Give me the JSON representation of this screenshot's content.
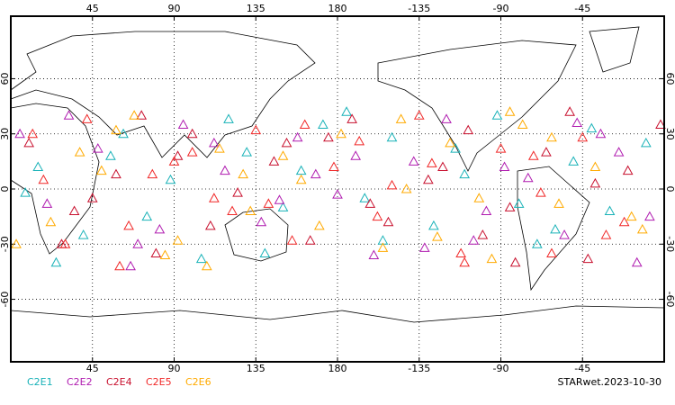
{
  "chart_data": {
    "type": "scatter",
    "title": "STARwet.2023-10-30",
    "xlim": [
      0,
      360
    ],
    "ylim": [
      -94,
      94
    ],
    "xticks": [
      45,
      90,
      135,
      180,
      {
        "value": 225,
        "label": "-135"
      },
      {
        "value": 270,
        "label": "-90"
      },
      {
        "value": 315,
        "label": "-45"
      }
    ],
    "yticks": [
      -60,
      -30,
      0,
      30,
      60
    ],
    "grid": true,
    "series": [
      {
        "name": "C2E1",
        "color": "#19b2b8",
        "x": [
          15,
          40,
          62,
          88,
          105,
          130,
          150,
          172,
          195,
          210,
          233,
          250,
          268,
          290,
          310,
          330,
          350,
          25,
          75,
          120,
          160,
          205,
          245,
          280,
          320,
          8,
          55,
          140,
          185,
          300
        ],
        "y": [
          12,
          -25,
          30,
          5,
          -38,
          20,
          -10,
          35,
          -5,
          28,
          -20,
          8,
          40,
          -30,
          15,
          -12,
          25,
          -40,
          -15,
          38,
          10,
          -28,
          22,
          -8,
          33,
          -2,
          18,
          -35,
          42,
          -22
        ]
      },
      {
        "name": "C2E2",
        "color": "#b01cb0",
        "x": [
          20,
          48,
          70,
          95,
          118,
          138,
          158,
          180,
          200,
          222,
          240,
          262,
          285,
          305,
          325,
          345,
          32,
          82,
          112,
          148,
          190,
          228,
          272,
          312,
          352,
          5,
          66,
          168,
          255,
          335
        ],
        "y": [
          -8,
          22,
          -30,
          35,
          10,
          -18,
          28,
          -3,
          -36,
          15,
          38,
          -12,
          6,
          -25,
          30,
          -40,
          40,
          -22,
          25,
          -6,
          18,
          -32,
          12,
          36,
          -15,
          30,
          -42,
          8,
          -28,
          20
        ]
      },
      {
        "name": "C2E4",
        "color": "#c8102e",
        "x": [
          10,
          35,
          58,
          80,
          100,
          125,
          145,
          165,
          188,
          208,
          230,
          252,
          275,
          295,
          318,
          340,
          28,
          72,
          110,
          152,
          198,
          238,
          278,
          322,
          358,
          45,
          92,
          175,
          260,
          308
        ],
        "y": [
          25,
          -12,
          8,
          -35,
          30,
          -2,
          15,
          -28,
          38,
          -18,
          5,
          32,
          -10,
          20,
          -38,
          10,
          -30,
          40,
          -20,
          25,
          -8,
          12,
          -40,
          3,
          35,
          -5,
          18,
          28,
          -25,
          42
        ]
      },
      {
        "name": "C2E5",
        "color": "#f02828",
        "x": [
          18,
          42,
          65,
          90,
          112,
          135,
          155,
          178,
          202,
          225,
          248,
          270,
          292,
          315,
          338,
          30,
          78,
          122,
          162,
          210,
          250,
          288,
          328,
          12,
          60,
          100,
          142,
          192,
          232,
          298
        ],
        "y": [
          5,
          38,
          -20,
          15,
          -5,
          32,
          -28,
          12,
          -15,
          40,
          -35,
          22,
          -2,
          28,
          -18,
          -30,
          8,
          -12,
          35,
          2,
          -40,
          18,
          -25,
          30,
          -42,
          20,
          -8,
          26,
          14,
          -35
        ]
      },
      {
        "name": "C2E6",
        "color": "#ffaa00",
        "x": [
          22,
          50,
          68,
          92,
          115,
          132,
          160,
          182,
          205,
          218,
          242,
          265,
          282,
          302,
          322,
          348,
          38,
          85,
          128,
          170,
          215,
          258,
          298,
          342,
          3,
          58,
          108,
          150,
          235,
          275
        ],
        "y": [
          -18,
          10,
          40,
          -28,
          22,
          -12,
          5,
          30,
          -32,
          0,
          25,
          -38,
          35,
          -8,
          12,
          -22,
          20,
          -36,
          8,
          -20,
          38,
          -5,
          28,
          -15,
          -30,
          32,
          -42,
          18,
          -26,
          42
        ]
      }
    ]
  }
}
